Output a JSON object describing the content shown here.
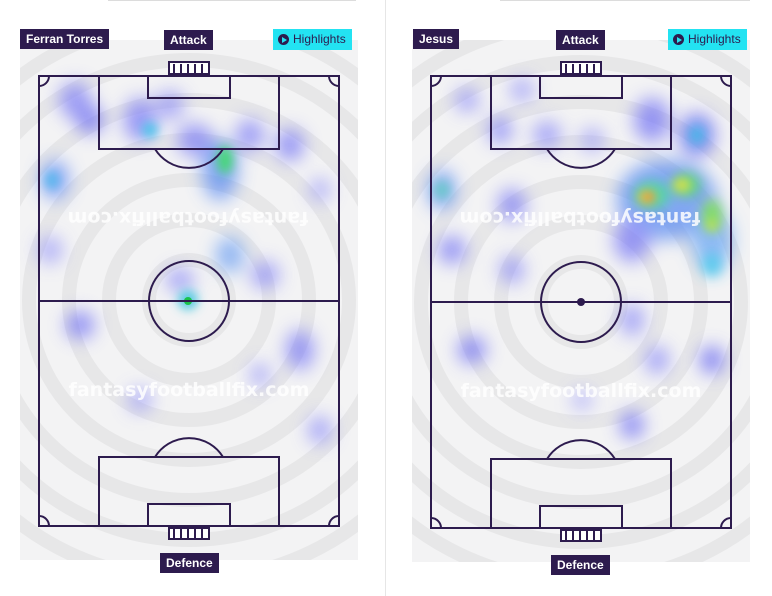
{
  "panels": [
    {
      "player": "Ferran Torres",
      "attack_label": "Attack",
      "defence_label": "Defence",
      "highlights_label": "Highlights",
      "watermark": "fantasyfootballfix.com"
    },
    {
      "player": "Jesus",
      "attack_label": "Attack",
      "defence_label": "Defence",
      "highlights_label": "Highlights",
      "watermark": "fantasyfootballfix.com"
    }
  ],
  "colors": {
    "label_bg": "#2d1b4e",
    "highlights_bg": "#23e3f2",
    "pitch_bg": "#f3f3f4",
    "pitch_lines": "#2d1b4e"
  }
}
